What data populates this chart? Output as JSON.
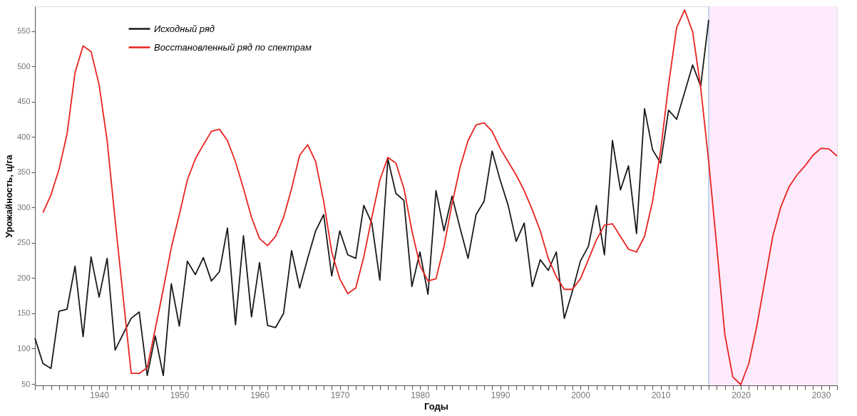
{
  "chart_data": {
    "type": "line",
    "xlabel": "Годы",
    "ylabel": "Урожайность, ц/га",
    "xlim": [
      1932,
      2032
    ],
    "ylim": [
      48,
      585
    ],
    "xticks": [
      {
        "value": 1932,
        "label": null
      },
      {
        "value": 1933,
        "label": null
      },
      {
        "value": 1934,
        "label": null
      },
      {
        "value": 1935,
        "label": null
      },
      {
        "value": 1936,
        "label": null
      },
      {
        "value": 1937,
        "label": null
      },
      {
        "value": 1938,
        "label": null
      },
      {
        "value": 1939,
        "label": null
      },
      1940,
      {
        "value": 1941,
        "label": null
      },
      {
        "value": 1942,
        "label": null
      },
      {
        "value": 1943,
        "label": null
      },
      {
        "value": 1944,
        "label": null
      },
      {
        "value": 1945,
        "label": null
      },
      {
        "value": 1946,
        "label": null
      },
      {
        "value": 1947,
        "label": null
      },
      {
        "value": 1948,
        "label": null
      },
      {
        "value": 1949,
        "label": null
      },
      1950,
      {
        "value": 1951,
        "label": null
      },
      {
        "value": 1952,
        "label": null
      },
      {
        "value": 1953,
        "label": null
      },
      {
        "value": 1954,
        "label": null
      },
      {
        "value": 1955,
        "label": null
      },
      {
        "value": 1956,
        "label": null
      },
      {
        "value": 1957,
        "label": null
      },
      {
        "value": 1958,
        "label": null
      },
      {
        "value": 1959,
        "label": null
      },
      1960,
      {
        "value": 1961,
        "label": null
      },
      {
        "value": 1962,
        "label": null
      },
      {
        "value": 1963,
        "label": null
      },
      {
        "value": 1964,
        "label": null
      },
      {
        "value": 1965,
        "label": null
      },
      {
        "value": 1966,
        "label": null
      },
      {
        "value": 1967,
        "label": null
      },
      {
        "value": 1968,
        "label": null
      },
      {
        "value": 1969,
        "label": null
      },
      1970,
      {
        "value": 1971,
        "label": null
      },
      {
        "value": 1972,
        "label": null
      },
      {
        "value": 1973,
        "label": null
      },
      {
        "value": 1974,
        "label": null
      },
      {
        "value": 1975,
        "label": null
      },
      {
        "value": 1976,
        "label": null
      },
      {
        "value": 1977,
        "label": null
      },
      {
        "value": 1978,
        "label": null
      },
      {
        "value": 1979,
        "label": null
      },
      1980,
      {
        "value": 1981,
        "label": null
      },
      {
        "value": 1982,
        "label": null
      },
      {
        "value": 1983,
        "label": null
      },
      {
        "value": 1984,
        "label": null
      },
      {
        "value": 1985,
        "label": null
      },
      {
        "value": 1986,
        "label": null
      },
      {
        "value": 1987,
        "label": null
      },
      {
        "value": 1988,
        "label": null
      },
      {
        "value": 1989,
        "label": null
      },
      1990,
      {
        "value": 1991,
        "label": null
      },
      {
        "value": 1992,
        "label": null
      },
      {
        "value": 1993,
        "label": null
      },
      {
        "value": 1994,
        "label": null
      },
      {
        "value": 1995,
        "label": null
      },
      {
        "value": 1996,
        "label": null
      },
      {
        "value": 1997,
        "label": null
      },
      {
        "value": 1998,
        "label": null
      },
      {
        "value": 1999,
        "label": null
      },
      2000,
      {
        "value": 2001,
        "label": null
      },
      {
        "value": 2002,
        "label": null
      },
      {
        "value": 2003,
        "label": null
      },
      {
        "value": 2004,
        "label": null
      },
      {
        "value": 2005,
        "label": null
      },
      {
        "value": 2006,
        "label": null
      },
      {
        "value": 2007,
        "label": null
      },
      {
        "value": 2008,
        "label": null
      },
      {
        "value": 2009,
        "label": null
      },
      2010,
      {
        "value": 2011,
        "label": null
      },
      {
        "value": 2012,
        "label": null
      },
      {
        "value": 2013,
        "label": null
      },
      {
        "value": 2014,
        "label": null
      },
      {
        "value": 2015,
        "label": null
      },
      {
        "value": 2016,
        "label": null
      },
      {
        "value": 2017,
        "label": null
      },
      {
        "value": 2018,
        "label": null
      },
      {
        "value": 2019,
        "label": null
      },
      2020,
      {
        "value": 2021,
        "label": null
      },
      {
        "value": 2022,
        "label": null
      },
      {
        "value": 2023,
        "label": null
      },
      {
        "value": 2024,
        "label": null
      },
      {
        "value": 2025,
        "label": null
      },
      {
        "value": 2026,
        "label": null
      },
      {
        "value": 2027,
        "label": null
      },
      {
        "value": 2028,
        "label": null
      },
      {
        "value": 2029,
        "label": null
      },
      2030,
      {
        "value": 2031,
        "label": null
      },
      {
        "value": 2032,
        "label": null
      }
    ],
    "yticks": [
      50,
      100,
      150,
      200,
      250,
      300,
      350,
      400,
      450,
      500,
      550
    ],
    "grid": false,
    "legend": "top left",
    "line_style": "solid",
    "bands": [
      {
        "axis": "x",
        "from": 2016,
        "to": 2032,
        "color": "#fdeafc"
      }
    ],
    "ref_lines": [
      {
        "axis": "x",
        "value": 2016,
        "color": "#7fb3d5"
      }
    ],
    "series": [
      {
        "name": "Исходный ряд",
        "color": "#1a1a1a",
        "x": [
          1932,
          1933,
          1934,
          1935,
          1936,
          1937,
          1938,
          1939,
          1940,
          1941,
          1942,
          1943,
          1944,
          1945,
          1946,
          1947,
          1948,
          1949,
          1950,
          1951,
          1952,
          1953,
          1954,
          1955,
          1956,
          1957,
          1958,
          1959,
          1960,
          1961,
          1962,
          1963,
          1964,
          1965,
          1966,
          1967,
          1968,
          1969,
          1970,
          1971,
          1972,
          1973,
          1974,
          1975,
          1976,
          1977,
          1978,
          1979,
          1980,
          1981,
          1982,
          1983,
          1984,
          1985,
          1986,
          1987,
          1988,
          1989,
          1990,
          1991,
          1992,
          1993,
          1994,
          1995,
          1996,
          1997,
          1998,
          1999,
          2000,
          2001,
          2002,
          2003,
          2004,
          2005,
          2006,
          2007,
          2008,
          2009,
          2010,
          2011,
          2012,
          2013,
          2014,
          2015,
          2016
        ],
        "values": [
          115,
          79,
          72,
          153,
          156,
          217,
          117,
          230,
          173,
          228,
          98,
          121,
          143,
          152,
          62,
          118,
          62,
          192,
          132,
          224,
          205,
          229,
          196,
          209,
          271,
          134,
          260,
          145,
          222,
          133,
          130,
          150,
          239,
          186,
          228,
          267,
          290,
          203,
          267,
          233,
          228,
          303,
          278,
          197,
          369,
          320,
          310,
          188,
          237,
          177,
          324,
          267,
          316,
          271,
          228,
          290,
          309,
          380,
          339,
          303,
          252,
          278,
          188,
          226,
          211,
          237,
          143,
          181,
          224,
          245,
          303,
          233,
          395,
          325,
          359,
          263,
          440,
          382,
          363,
          438,
          425,
          463,
          502,
          472,
          566
        ]
      },
      {
        "name": "Восстановленный ряд по спектрам",
        "color": "#e8231f",
        "x": [
          1933,
          1934,
          1935,
          1936,
          1937,
          1938,
          1939,
          1940,
          1941,
          1942,
          1943,
          1944,
          1945,
          1946,
          1947,
          1948,
          1949,
          1950,
          1951,
          1952,
          1953,
          1954,
          1955,
          1956,
          1957,
          1958,
          1959,
          1960,
          1961,
          1962,
          1963,
          1964,
          1965,
          1966,
          1967,
          1968,
          1969,
          1970,
          1971,
          1972,
          1973,
          1974,
          1975,
          1976,
          1977,
          1978,
          1979,
          1980,
          1981,
          1982,
          1983,
          1984,
          1985,
          1986,
          1987,
          1988,
          1989,
          1990,
          1991,
          1992,
          1993,
          1994,
          1995,
          1996,
          1997,
          1998,
          1999,
          2000,
          2001,
          2002,
          2003,
          2004,
          2005,
          2006,
          2007,
          2008,
          2009,
          2010,
          2011,
          2012,
          2013,
          2014,
          2015,
          2016,
          2017,
          2018,
          2019,
          2020,
          2021,
          2022,
          2023,
          2024,
          2025,
          2026,
          2027,
          2028,
          2029,
          2030,
          2031,
          2032
        ],
        "values": [
          293,
          318,
          354,
          404,
          491,
          529,
          521,
          474,
          395,
          282,
          173,
          65,
          65,
          73,
          128,
          184,
          243,
          290,
          339,
          369,
          389,
          408,
          411,
          395,
          365,
          327,
          286,
          256,
          246,
          259,
          286,
          327,
          374,
          389,
          365,
          309,
          237,
          199,
          178,
          186,
          230,
          286,
          339,
          371,
          363,
          327,
          267,
          218,
          196,
          199,
          245,
          305,
          357,
          395,
          417,
          420,
          408,
          384,
          365,
          346,
          324,
          297,
          267,
          228,
          202,
          184,
          184,
          199,
          226,
          254,
          275,
          277,
          259,
          241,
          237,
          259,
          309,
          380,
          474,
          555,
          580,
          549,
          470,
          365,
          245,
          121,
          60,
          49,
          79,
          132,
          196,
          260,
          301,
          329,
          346,
          359,
          374,
          384,
          383,
          373
        ]
      }
    ]
  }
}
